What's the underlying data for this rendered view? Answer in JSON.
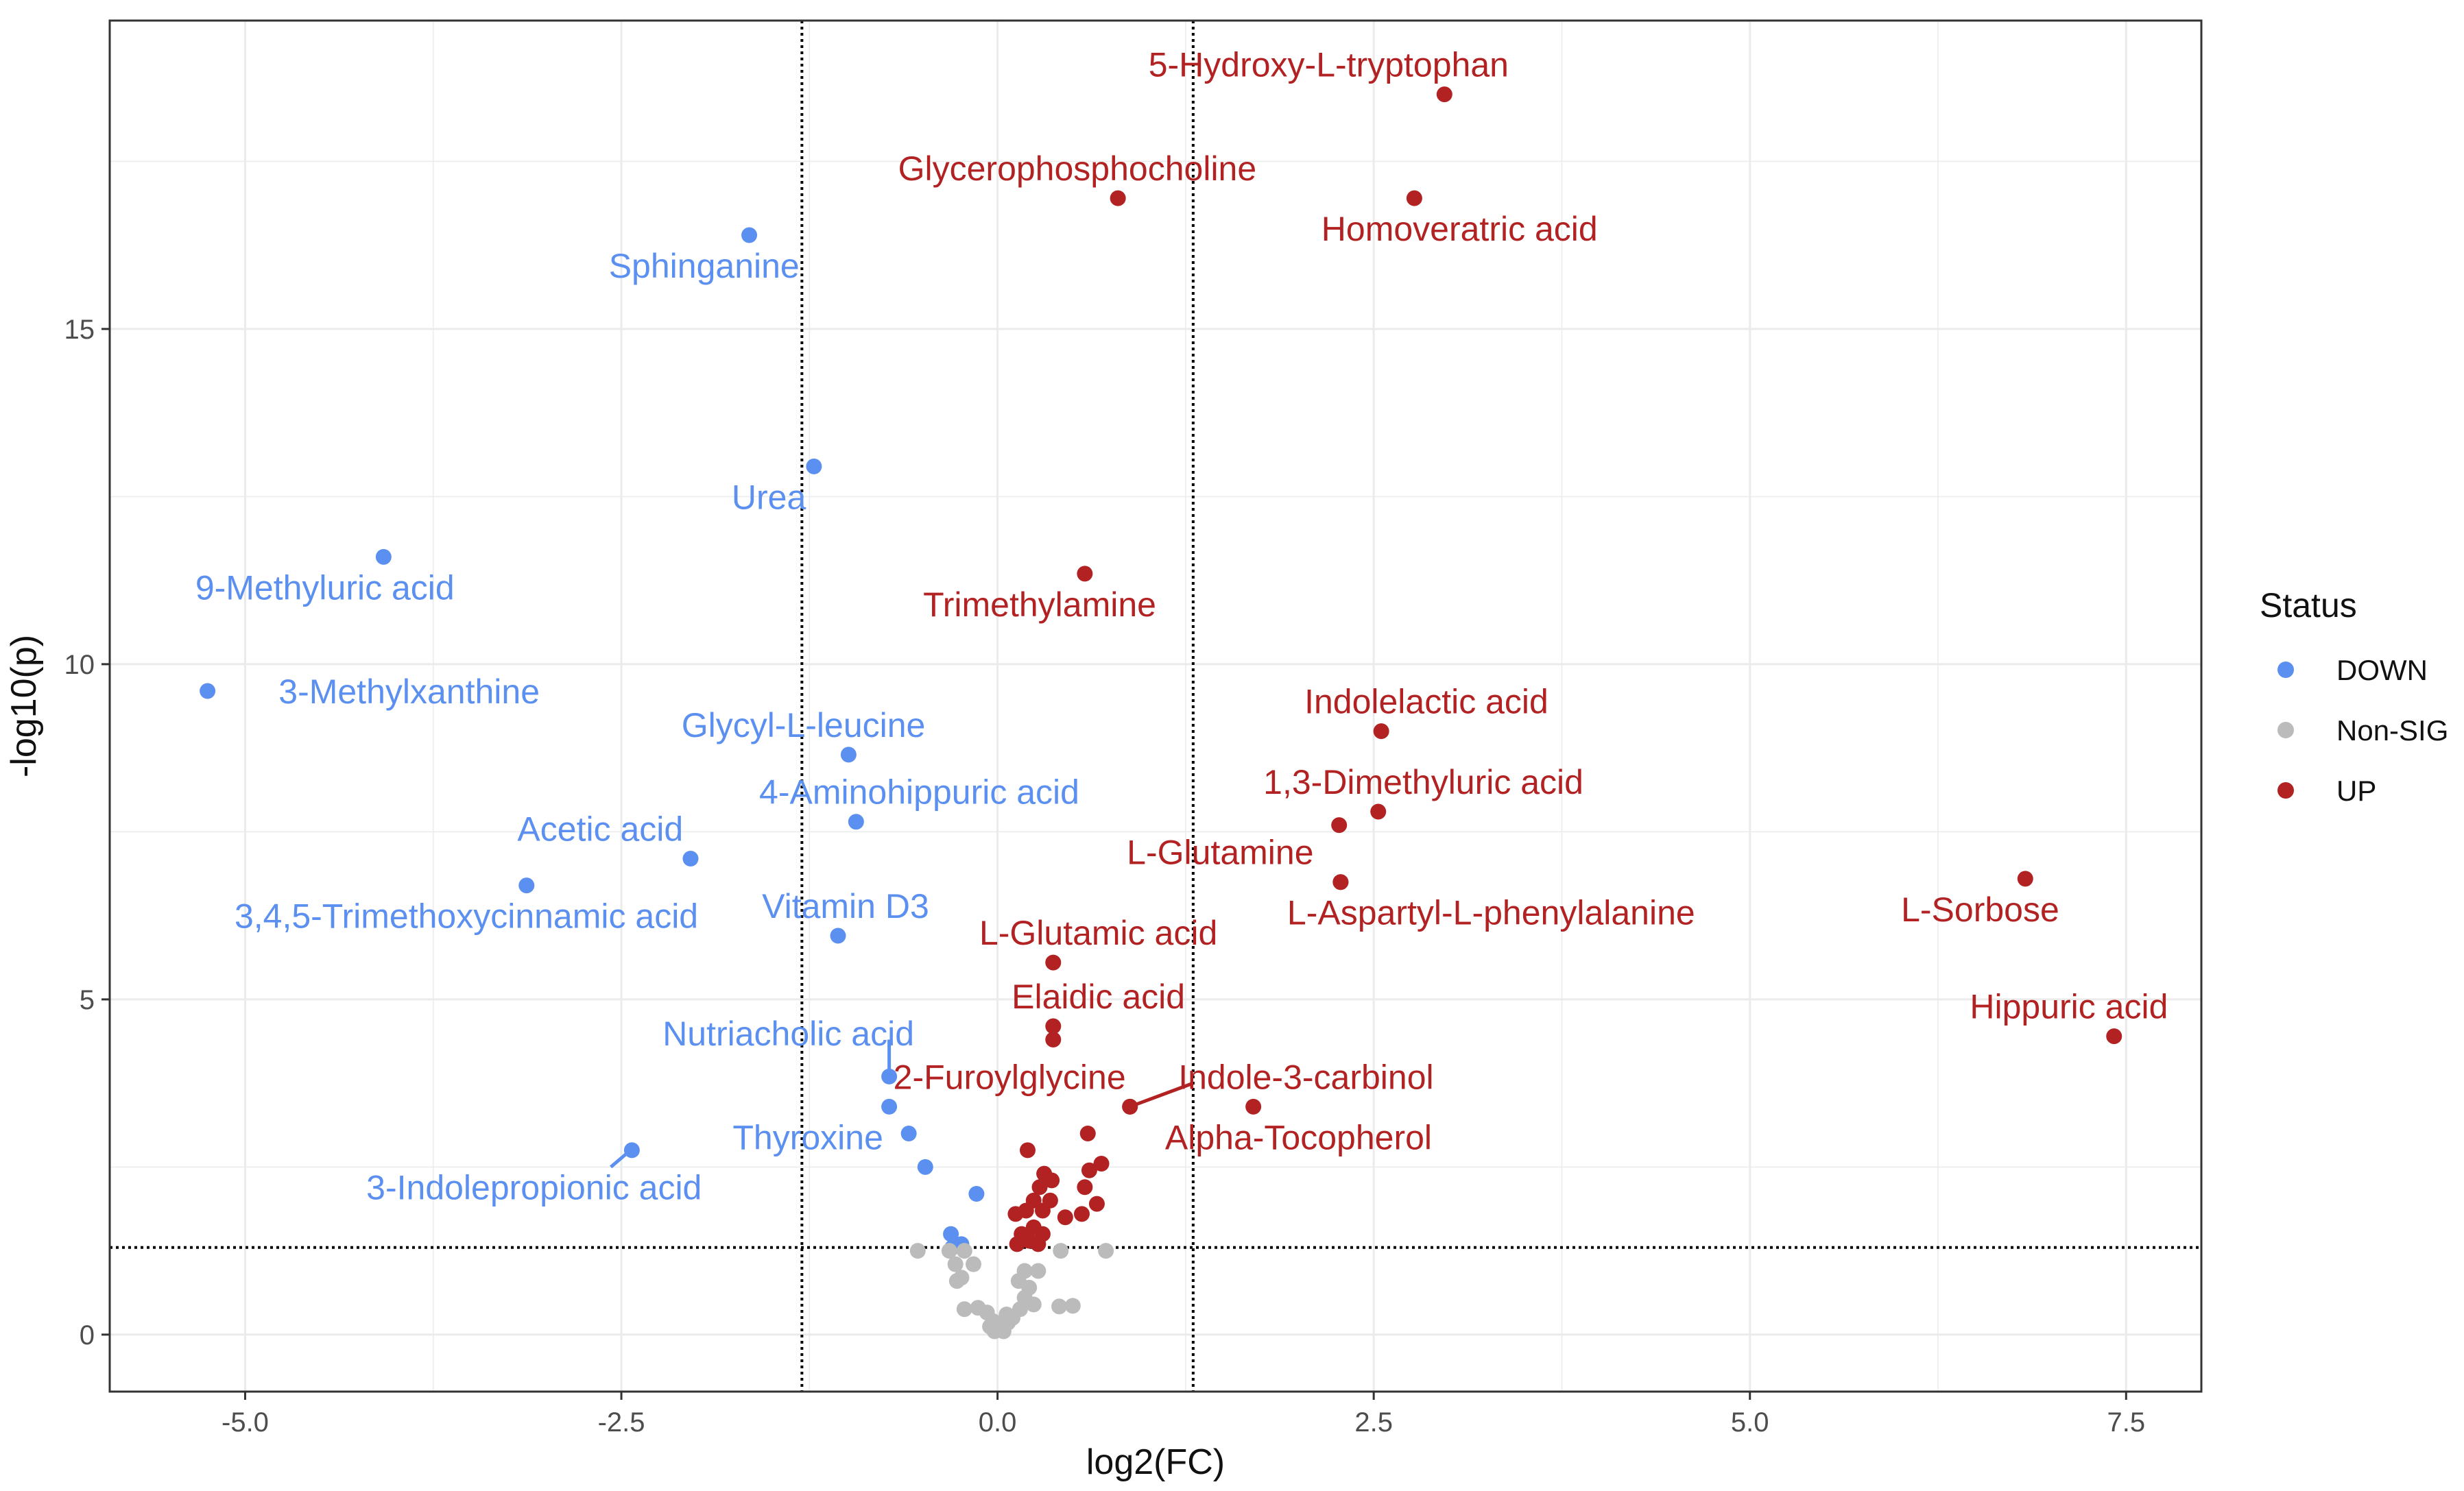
{
  "chart_data": {
    "type": "scatter",
    "title": "",
    "xlabel": "log2(FC)",
    "ylabel": "-log10(p)",
    "xlim": [
      -5.9,
      8.0
    ],
    "ylim": [
      -0.85,
      19.6
    ],
    "x_ticks": [
      -5.0,
      -2.5,
      0.0,
      2.5,
      5.0,
      7.5
    ],
    "x_tick_labels": [
      "-5.0",
      "-2.5",
      "0.0",
      "2.5",
      "5.0",
      "7.5"
    ],
    "y_ticks": [
      0,
      5,
      10,
      15
    ],
    "y_tick_labels": [
      "0",
      "5",
      "10",
      "15"
    ],
    "grid": true,
    "thresholds": {
      "x": [
        -1.3,
        1.3
      ],
      "y": 1.3
    },
    "legend": {
      "title": "Status",
      "placement": "right",
      "entries": [
        {
          "label": "DOWN",
          "color": "#5b8ff0"
        },
        {
          "label": "Non-SIG",
          "color": "#bbbbbb"
        },
        {
          "label": "UP",
          "color": "#b22222"
        }
      ]
    },
    "colors": {
      "DOWN": "#5b8ff0",
      "Non-SIG": "#bbbbbb",
      "UP": "#b22222"
    },
    "series": [
      {
        "name": "DOWN",
        "points": [
          {
            "x": -1.65,
            "y": 16.4,
            "label": "Sphinganine",
            "lx": -1.95,
            "ly": 15.95
          },
          {
            "x": -1.22,
            "y": 12.95,
            "label": "Urea",
            "lx": -1.52,
            "ly": 12.5
          },
          {
            "x": -4.08,
            "y": 11.6,
            "label": "9-Methyluric acid",
            "lx": -4.47,
            "ly": 11.15
          },
          {
            "x": -5.25,
            "y": 9.6,
            "label": "3-Methylxanthine",
            "lx": -3.91,
            "ly": 9.6
          },
          {
            "x": -0.99,
            "y": 8.65,
            "label": "Glycyl-L-leucine",
            "lx": -1.29,
            "ly": 9.1
          },
          {
            "x": -0.94,
            "y": 7.65,
            "label": "4-Aminohippuric acid",
            "lx": -0.52,
            "ly": 8.1
          },
          {
            "x": -2.04,
            "y": 7.1,
            "label": "Acetic acid",
            "lx": -2.64,
            "ly": 7.55
          },
          {
            "x": -3.13,
            "y": 6.7,
            "label": "3,4,5-Trimethoxycinnamic acid",
            "lx": -3.53,
            "ly": 6.25
          },
          {
            "x": -1.06,
            "y": 5.95,
            "label": "Vitamin D3",
            "lx": -1.01,
            "ly": 6.4
          },
          {
            "x": -0.72,
            "y": 3.85,
            "label": "Nutriacholic acid",
            "lx": -1.39,
            "ly": 4.5,
            "seg": [
              -0.72,
              4.4,
              -0.72,
              3.95
            ]
          },
          {
            "x": -0.72,
            "y": 3.4
          },
          {
            "x": -0.59,
            "y": 3.0,
            "label": "Thyroxine",
            "lx": -1.26,
            "ly": 2.95
          },
          {
            "x": -2.43,
            "y": 2.75,
            "label": "3-Indolepropionic acid",
            "lx": -3.08,
            "ly": 2.2,
            "seg": [
              -2.57,
              2.5,
              -2.45,
              2.73
            ]
          },
          {
            "x": -0.48,
            "y": 2.5
          },
          {
            "x": -0.14,
            "y": 2.1
          },
          {
            "x": -0.31,
            "y": 1.5
          },
          {
            "x": -0.24,
            "y": 1.35
          },
          {
            "x": -0.3,
            "y": 1.3
          }
        ]
      },
      {
        "name": "UP",
        "points": [
          {
            "x": 2.97,
            "y": 18.5,
            "label": "5-Hydroxy-L-tryptophan",
            "lx": 2.2,
            "ly": 18.95
          },
          {
            "x": 0.8,
            "y": 16.95,
            "label": "Glycerophosphocholine",
            "lx": 0.53,
            "ly": 17.4
          },
          {
            "x": 2.77,
            "y": 16.95,
            "label": "Homoveratric acid",
            "lx": 3.07,
            "ly": 16.5
          },
          {
            "x": 0.58,
            "y": 11.35,
            "label": "Trimethylamine",
            "lx": 0.28,
            "ly": 10.9
          },
          {
            "x": 2.55,
            "y": 9.0,
            "label": "Indolelactic acid",
            "lx": 2.85,
            "ly": 9.45
          },
          {
            "x": 2.53,
            "y": 7.8,
            "label": "1,3-Dimethyluric acid",
            "lx": 2.83,
            "ly": 8.25
          },
          {
            "x": 2.27,
            "y": 7.6
          },
          {
            "x": 2.28,
            "y": 6.75,
            "label": "L-Glutamine",
            "lx": 1.48,
            "ly": 7.2
          },
          {
            "x": 2.28,
            "y": 6.75,
            "label": "L-Aspartyl-L-phenylalanine",
            "lx": 3.28,
            "ly": 6.3
          },
          {
            "x": 6.83,
            "y": 6.8,
            "label": "L-Sorbose",
            "lx": 6.53,
            "ly": 6.35
          },
          {
            "x": 0.37,
            "y": 5.55,
            "label": "L-Glutamic acid",
            "lx": 0.67,
            "ly": 6.0
          },
          {
            "x": 0.37,
            "y": 4.6,
            "label": "Elaidic acid",
            "lx": 0.67,
            "ly": 5.05
          },
          {
            "x": 0.37,
            "y": 4.4
          },
          {
            "x": 7.42,
            "y": 4.45,
            "label": "Hippuric acid",
            "lx": 7.12,
            "ly": 4.9
          },
          {
            "x": 0.88,
            "y": 3.4,
            "label": "2-Furoylglycine",
            "lx": 0.08,
            "ly": 3.85
          },
          {
            "x": 0.88,
            "y": 3.4,
            "label": "Indole-3-carbinol",
            "lx": 2.05,
            "ly": 3.85,
            "seg": [
              1.3,
              3.75,
              0.88,
              3.4
            ]
          },
          {
            "x": 1.7,
            "y": 3.4,
            "label": "Alpha-Tocopherol",
            "lx": 2.0,
            "ly": 2.95
          },
          {
            "x": 0.6,
            "y": 3.0
          },
          {
            "x": 0.2,
            "y": 2.75
          },
          {
            "x": 0.69,
            "y": 2.55
          },
          {
            "x": 0.61,
            "y": 2.45
          },
          {
            "x": 0.31,
            "y": 2.4
          },
          {
            "x": 0.36,
            "y": 2.3
          },
          {
            "x": 0.28,
            "y": 2.2
          },
          {
            "x": 0.58,
            "y": 2.2
          },
          {
            "x": 0.24,
            "y": 2.0
          },
          {
            "x": 0.35,
            "y": 2.0
          },
          {
            "x": 0.66,
            "y": 1.95
          },
          {
            "x": 0.19,
            "y": 1.85
          },
          {
            "x": 0.3,
            "y": 1.85
          },
          {
            "x": 0.56,
            "y": 1.8
          },
          {
            "x": 0.12,
            "y": 1.8
          },
          {
            "x": 0.45,
            "y": 1.75
          },
          {
            "x": 0.24,
            "y": 1.6
          },
          {
            "x": 0.16,
            "y": 1.5
          },
          {
            "x": 0.3,
            "y": 1.5
          },
          {
            "x": 0.21,
            "y": 1.4
          },
          {
            "x": 0.13,
            "y": 1.35
          },
          {
            "x": 0.27,
            "y": 1.35
          }
        ]
      },
      {
        "name": "Non-SIG",
        "points": [
          {
            "x": -0.53,
            "y": 1.25
          },
          {
            "x": -0.32,
            "y": 1.25
          },
          {
            "x": -0.22,
            "y": 1.25
          },
          {
            "x": 0.42,
            "y": 1.25
          },
          {
            "x": 0.72,
            "y": 1.25
          },
          {
            "x": -0.28,
            "y": 1.05
          },
          {
            "x": -0.16,
            "y": 1.05
          },
          {
            "x": 0.18,
            "y": 0.95
          },
          {
            "x": 0.27,
            "y": 0.95
          },
          {
            "x": -0.24,
            "y": 0.85
          },
          {
            "x": 0.14,
            "y": 0.8
          },
          {
            "x": 0.21,
            "y": 0.7
          },
          {
            "x": -0.27,
            "y": 0.8
          },
          {
            "x": 0.18,
            "y": 0.55
          },
          {
            "x": 0.24,
            "y": 0.45
          },
          {
            "x": -0.22,
            "y": 0.38
          },
          {
            "x": -0.13,
            "y": 0.4
          },
          {
            "x": -0.07,
            "y": 0.33
          },
          {
            "x": 0.06,
            "y": 0.3
          },
          {
            "x": 0.15,
            "y": 0.38
          },
          {
            "x": 0.41,
            "y": 0.42
          },
          {
            "x": 0.5,
            "y": 0.43
          },
          {
            "x": -0.03,
            "y": 0.2
          },
          {
            "x": 0.07,
            "y": 0.18
          },
          {
            "x": 0.02,
            "y": 0.1
          },
          {
            "x": -0.02,
            "y": 0.05
          },
          {
            "x": 0.04,
            "y": 0.05
          },
          {
            "x": -0.05,
            "y": 0.12
          },
          {
            "x": 0.1,
            "y": 0.25
          }
        ]
      }
    ]
  }
}
